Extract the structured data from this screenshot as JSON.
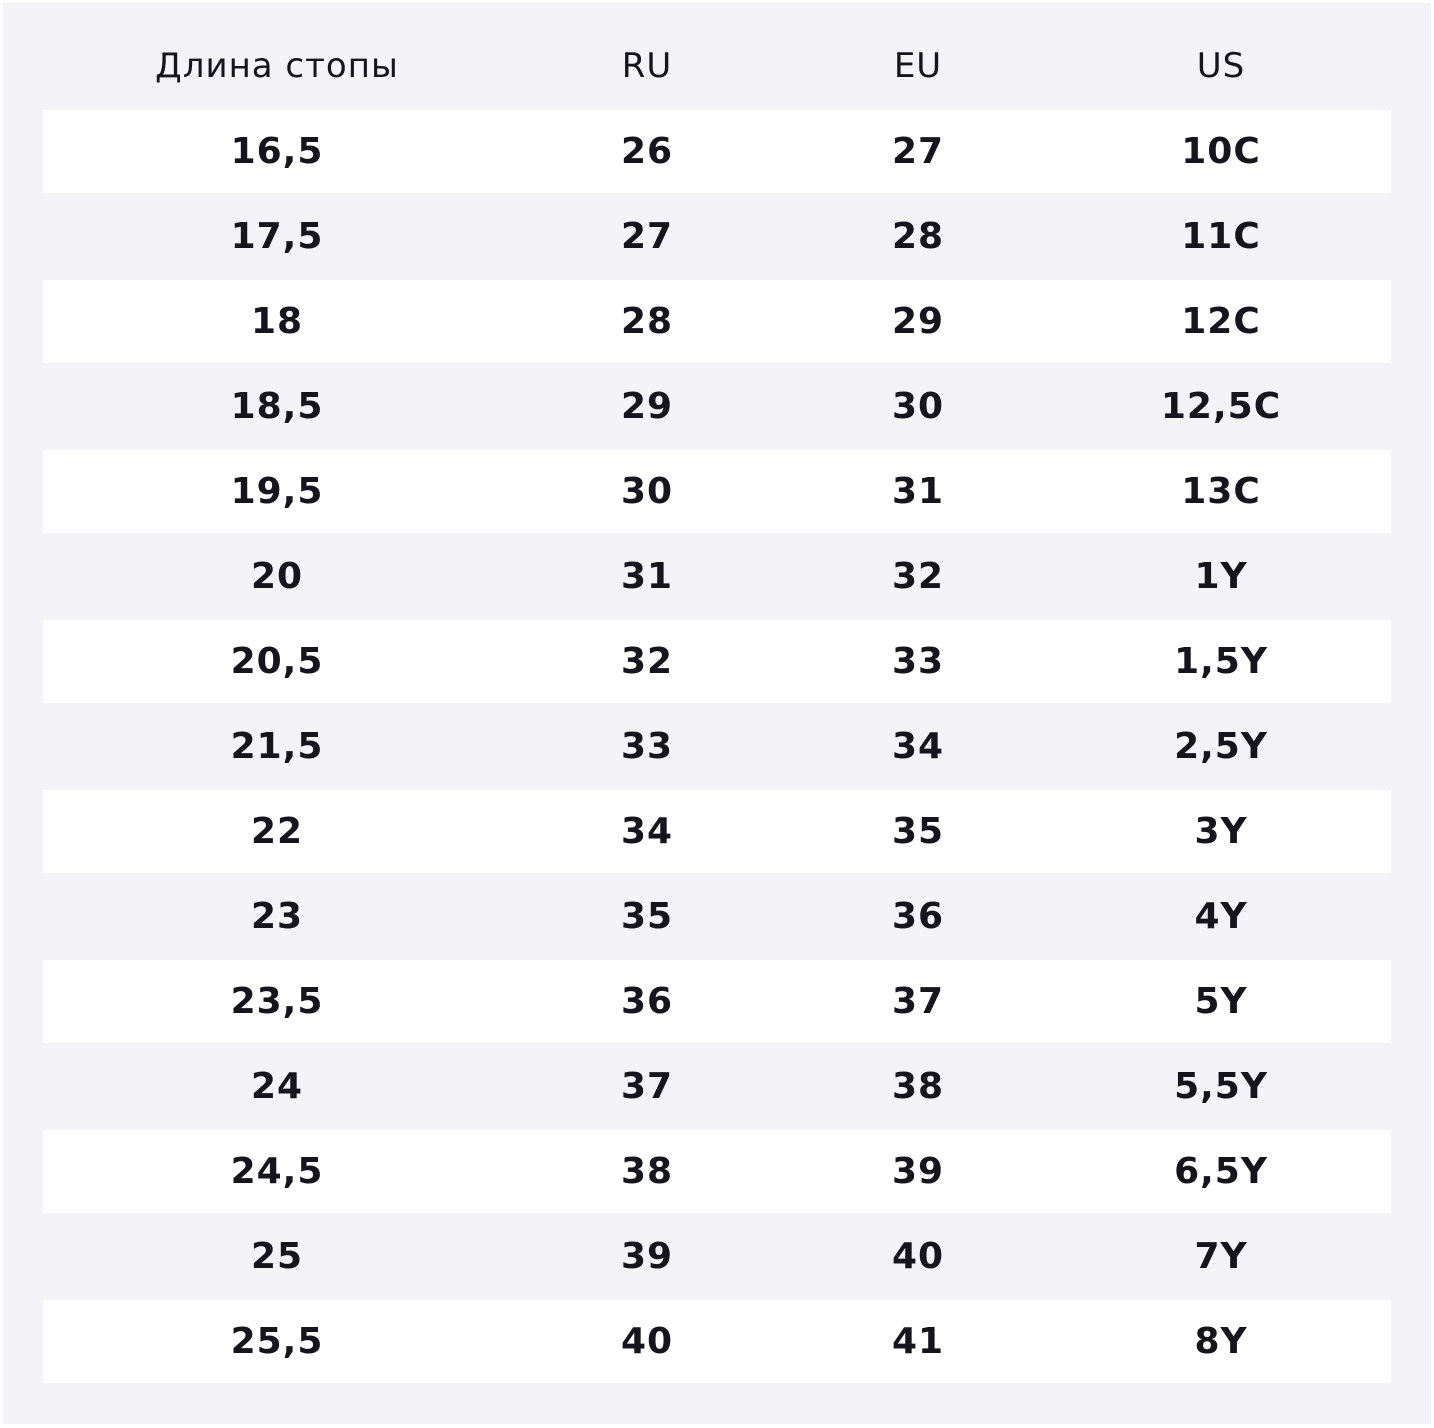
{
  "table": {
    "header": [
      "Длина стопы",
      "RU",
      "EU",
      "US"
    ],
    "rows": [
      [
        "16,5",
        "26",
        "27",
        "10C"
      ],
      [
        "17,5",
        "27",
        "28",
        "11C"
      ],
      [
        "18",
        "28",
        "29",
        "12C"
      ],
      [
        "18,5",
        "29",
        "30",
        "12,5C"
      ],
      [
        "19,5",
        "30",
        "31",
        "13C"
      ],
      [
        "20",
        "31",
        "32",
        "1Y"
      ],
      [
        "20,5",
        "32",
        "33",
        "1,5Y"
      ],
      [
        "21,5",
        "33",
        "34",
        "2,5Y"
      ],
      [
        "22",
        "34",
        "35",
        "3Y"
      ],
      [
        "23",
        "35",
        "36",
        "4Y"
      ],
      [
        "23,5",
        "36",
        "37",
        "5Y"
      ],
      [
        "24",
        "37",
        "38",
        "5,5Y"
      ],
      [
        "24,5",
        "38",
        "39",
        "6,5Y"
      ],
      [
        "25",
        "39",
        "40",
        "7Y"
      ],
      [
        "25,5",
        "40",
        "41",
        "8Y"
      ]
    ]
  }
}
